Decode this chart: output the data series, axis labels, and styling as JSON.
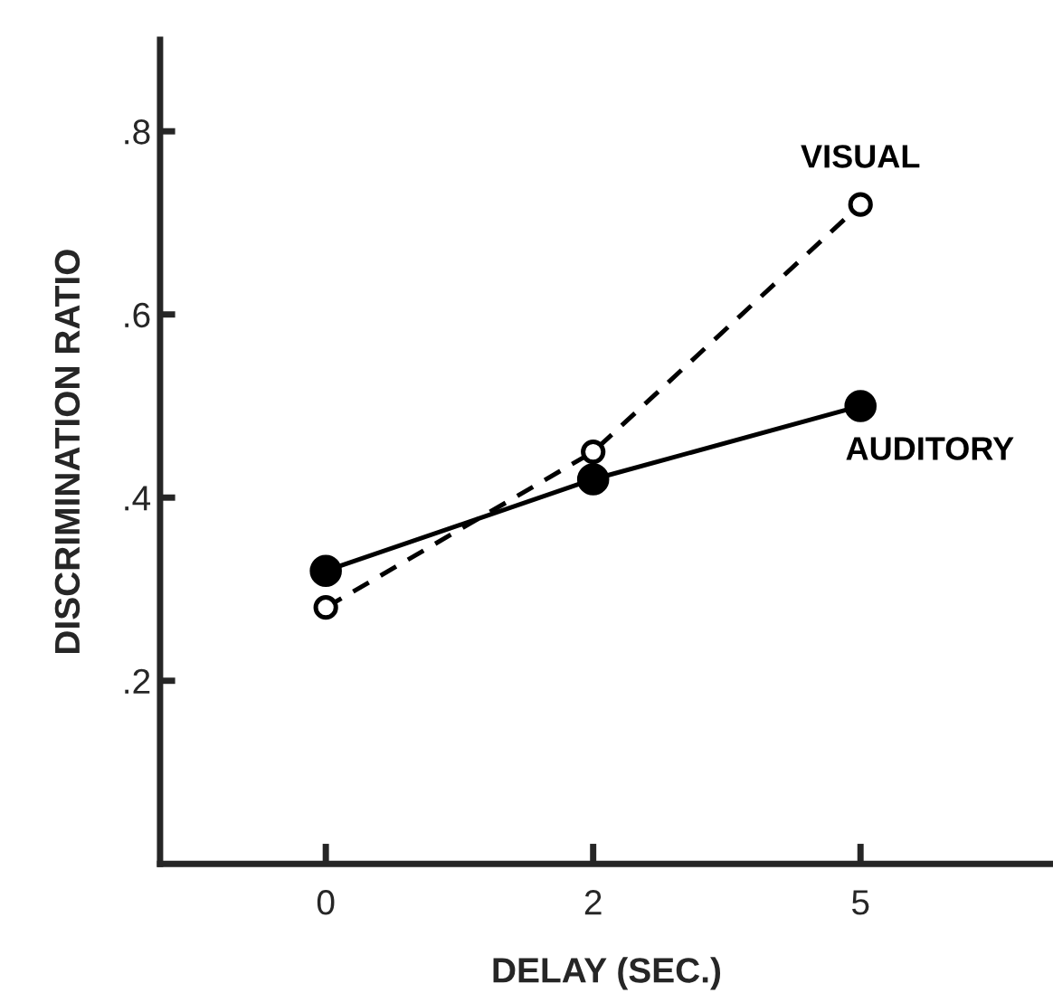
{
  "chart_data": {
    "type": "line",
    "xlabel": "DELAY (SEC.)",
    "ylabel": "DISCRIMINATION RATIO",
    "categories": [
      "0",
      "2",
      "5"
    ],
    "series": [
      {
        "name": "VISUAL",
        "color": "#000000",
        "values": [
          0.28,
          0.45,
          0.72
        ],
        "line_style": "dashed",
        "marker": "circle"
      },
      {
        "name": "AUDITORY",
        "color": "#000000",
        "values": [
          0.32,
          0.42,
          0.5
        ],
        "line_style": "solid",
        "marker": "circle"
      }
    ],
    "ylim": [
      0,
      0.9
    ],
    "yticks": [
      {
        "value": 0.2,
        "label": ".2"
      },
      {
        "value": 0.4,
        "label": ".4"
      },
      {
        "value": 0.6,
        "label": ".6"
      },
      {
        "value": 0.8,
        "label": ".8"
      }
    ],
    "grid": false,
    "legend": false
  }
}
